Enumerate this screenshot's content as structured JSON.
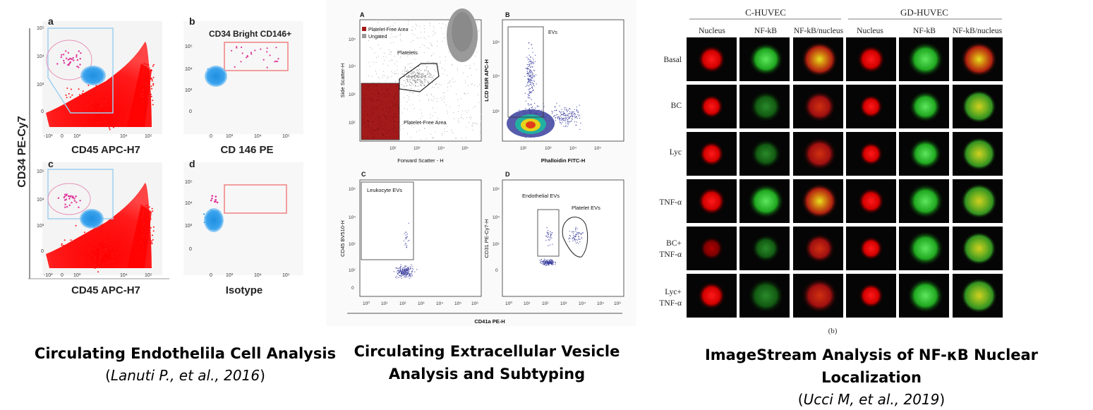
{
  "left_figure": {
    "y_axis_label": "CD34 PE-Cy7",
    "panel_a_letter": "a",
    "panel_b_letter": "b",
    "panel_c_letter": "c",
    "panel_d_letter": "d",
    "panel_b_gate_label": "CD34 Bright CD146+",
    "x_label_ac": "CD45 APC-H7",
    "x_label_b": "CD 146 PE",
    "x_label_d": "Isotype",
    "ticks_x_ac": [
      "-10³",
      "0",
      "10³",
      "10⁴",
      "10⁵"
    ],
    "ticks_y": [
      "10⁵",
      "10⁴",
      "10³",
      "0"
    ],
    "colors": {
      "events": "#ff1010",
      "cells": "#2f9be8",
      "gate_events": "#e0359a",
      "gate": "#9fd0ef",
      "gate_b": "#f08080"
    }
  },
  "middle_figure": {
    "panel_A": {
      "letter": "A",
      "legend": [
        "Platelet-Free Area",
        "Ungated"
      ],
      "gate_labels": [
        "Platelets",
        "Platelet-Free Area"
      ],
      "xlabel": "Forward Scatter - H",
      "ylabel": "Side Scatter-H"
    },
    "panel_B": {
      "letter": "B",
      "gate_label": "EVs",
      "xlabel": "Phalloidin FITC-H",
      "ylabel": "LCD MSR APC-H"
    },
    "panel_C": {
      "letter": "C",
      "gate_label": "Leukocyte EVs",
      "ylabel": "CD45 BV510-H"
    },
    "panel_D": {
      "letter": "D",
      "gate_labels": [
        "Endothelial EVs",
        "Platelet EVs"
      ],
      "ylabel": "CD31 PE-Cy7-H"
    },
    "shared_xlabel": "CD41a PE-H",
    "ticks_x": [
      "10⁰",
      "10¹",
      "10²",
      "10³",
      "10⁴",
      "10⁵",
      "10⁶"
    ],
    "ticks_y_A": [
      "10⁵",
      "10⁴",
      "10³",
      "10²"
    ],
    "ticks_y_CD": [
      "10⁵",
      "10⁴",
      "10³",
      "10²",
      "0"
    ],
    "colors": {
      "free_area": "#a31a1a",
      "ungated": "#999999",
      "events": "#3b3f9e"
    }
  },
  "right_figure": {
    "groups": [
      "C-HUVEC",
      "GD-HUVEC"
    ],
    "columns": [
      "Nucleus",
      "NF-kB",
      "NF-kB/nucleus",
      "Nucleus",
      "NF-kB",
      "NF-kB/nucleus"
    ],
    "rows": [
      "Basal",
      "BC",
      "Lyc",
      "TNF-α",
      "BC+\nTNF-α",
      "Lyc+\nTNF-α"
    ],
    "panel_label": "(b)"
  },
  "captions": {
    "left": {
      "title": "Circulating Endothelila Cell Analysis",
      "citation_author": "Lanuti P., et al., 2016",
      "open": "(",
      "close": ")"
    },
    "middle": {
      "title_line1": "Circulating Extracellular Vesicle",
      "title_line2": "Analysis and Subtyping"
    },
    "right": {
      "title": "ImageStream Analysis of NF-κB Nuclear Localization",
      "citation_author": "Ucci M, et al., 2019",
      "open": "(",
      "close": ")"
    }
  }
}
